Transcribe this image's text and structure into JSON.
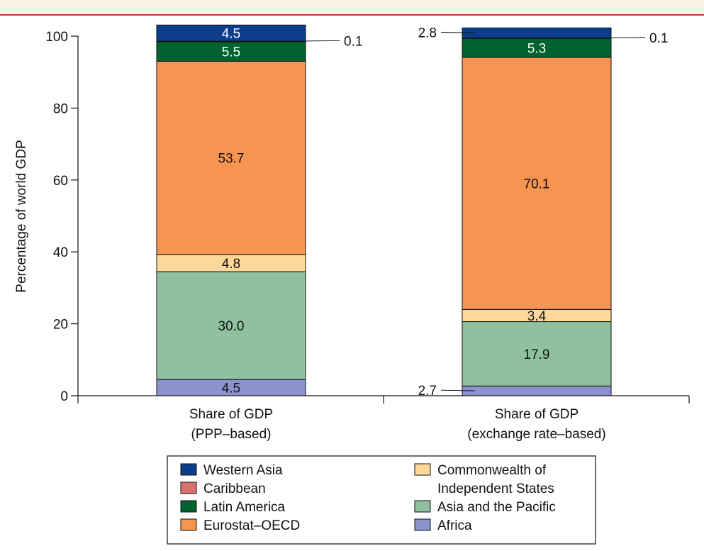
{
  "chart_data": {
    "type": "bar",
    "stacked": true,
    "ylabel": "Percentage of world GDP",
    "ylim": [
      0,
      100
    ],
    "yticks": [
      "0",
      "20",
      "40",
      "60",
      "80",
      "100"
    ],
    "categories": [
      [
        "Share of GDP",
        "(PPP–based)"
      ],
      [
        "Share of GDP",
        "(exchange rate–based)"
      ]
    ],
    "series": [
      {
        "name": "Africa",
        "color": "#8b93cc",
        "values": [
          4.5,
          2.7
        ],
        "labels": [
          "4.5",
          "2.7"
        ]
      },
      {
        "name": "Asia and the Pacific",
        "color": "#8fc19f",
        "values": [
          30.0,
          17.9
        ],
        "labels": [
          "30.0",
          "17.9"
        ]
      },
      {
        "name": "Commonwealth of Independent States",
        "color": "#fdd89a",
        "values": [
          4.8,
          3.4
        ],
        "labels": [
          "4.8",
          "3.4"
        ]
      },
      {
        "name": "Eurostat–OECD",
        "color": "#f69452",
        "values": [
          53.7,
          70.1
        ],
        "labels": [
          "53.7",
          "70.1"
        ]
      },
      {
        "name": "Latin America",
        "color": "#00622f",
        "values": [
          5.5,
          5.3
        ],
        "labels": [
          "5.5",
          "5.3"
        ]
      },
      {
        "name": "Caribbean",
        "color": "#d9716f",
        "values": [
          0.1,
          0.1
        ],
        "labels": [
          "0.1",
          "0.1"
        ]
      },
      {
        "name": "Western Asia",
        "color": "#0a3e8c",
        "values": [
          4.5,
          2.8
        ],
        "labels": [
          "4.5",
          "2.8"
        ]
      }
    ],
    "legend": {
      "placement": "bottom-center",
      "columns": [
        [
          {
            "lines": [
              "Western Asia"
            ],
            "color": "#0a3e8c"
          },
          {
            "lines": [
              "Caribbean"
            ],
            "color": "#d9716f"
          },
          {
            "lines": [
              "Latin America"
            ],
            "color": "#00622f"
          },
          {
            "lines": [
              "Eurostat–OECD"
            ],
            "color": "#f69452"
          }
        ],
        [
          {
            "lines": [
              "Commonwealth of",
              "Independent States"
            ],
            "color": "#fdd89a"
          },
          {
            "lines": [
              "Asia and the Pacific"
            ],
            "color": "#8fc19f"
          },
          {
            "lines": [
              "Africa"
            ],
            "color": "#8b93cc"
          }
        ]
      ]
    }
  }
}
